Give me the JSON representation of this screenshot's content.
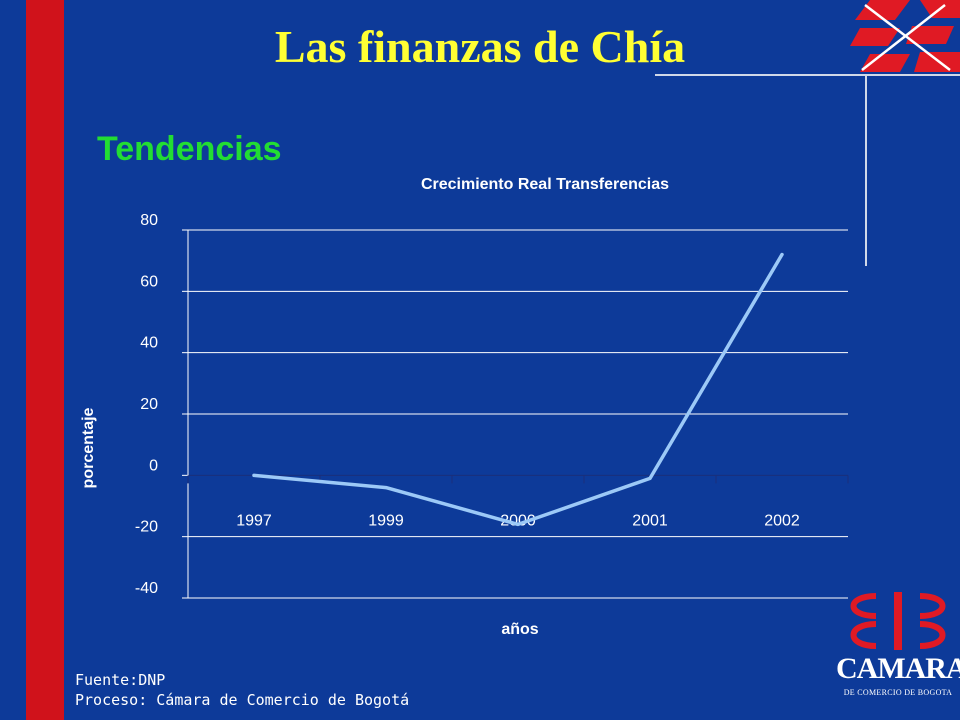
{
  "slide": {
    "title": "Las finanzas de Chía",
    "subtitle": "Tendencias",
    "source_label": "Fuente:DNP",
    "process_label": "Proceso: Cámara de Comercio de Bogotá",
    "logo_text": "CAMARA",
    "logo_subtext": "DE COMERCIO DE BOGOTA"
  },
  "colors": {
    "background": "#0d3a99",
    "accent_red": "#d0121b",
    "title_yellow": "#ffff33",
    "subtitle_green": "#22dd33",
    "series_line": "#9cc9f7"
  },
  "chart_data": {
    "type": "line",
    "title": "Crecimiento Real Transferencias",
    "xlabel": "años",
    "ylabel": "porcentaje",
    "categories": [
      "1997",
      "1999",
      "2000",
      "2001",
      "2002"
    ],
    "yticks": [
      "80",
      "60",
      "40",
      "20",
      "0",
      "-20",
      "-40"
    ],
    "ylim": [
      -40,
      80
    ],
    "series": [
      {
        "values": [
          0,
          -4,
          -16,
          -1,
          72
        ]
      }
    ],
    "grid": true
  }
}
